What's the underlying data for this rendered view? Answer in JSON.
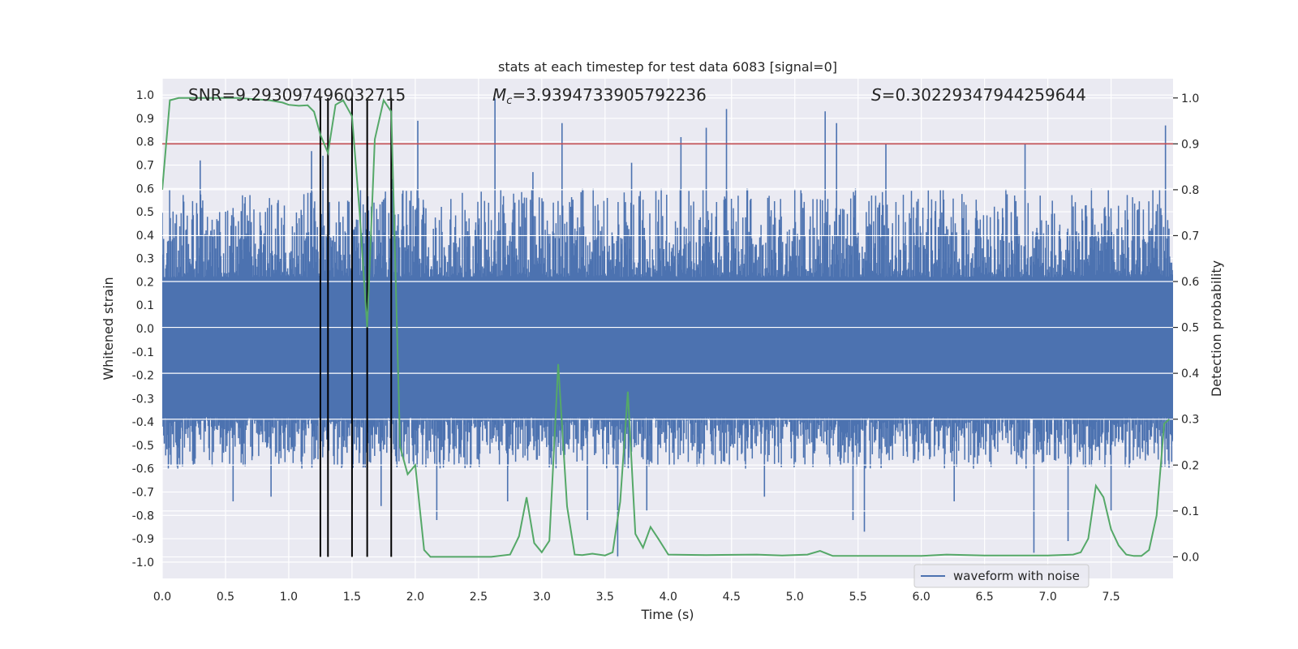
{
  "chart_data": {
    "type": "line",
    "title": "stats at each timestep for test data 6083 [signal=0]",
    "xlabel": "Time (s)",
    "ylabel_left": "Whitened strain",
    "ylabel_right": "Detection probability",
    "xlim": [
      0.0,
      7.99
    ],
    "ylim_left": [
      -1.07,
      1.07
    ],
    "ylim_right": [
      -0.047,
      1.042
    ],
    "x_ticks": [
      0.0,
      0.5,
      1.0,
      1.5,
      2.0,
      2.5,
      3.0,
      3.5,
      4.0,
      4.5,
      5.0,
      5.5,
      6.0,
      6.5,
      7.0,
      7.5
    ],
    "x_tick_labels": [
      "0.0",
      "0.5",
      "1.0",
      "1.5",
      "2.0",
      "2.5",
      "3.0",
      "3.5",
      "4.0",
      "4.5",
      "5.0",
      "5.5",
      "6.0",
      "6.5",
      "7.0",
      "7.5"
    ],
    "y_left_ticks": [
      1.0,
      0.9,
      0.8,
      0.7,
      0.6,
      0.5,
      0.4,
      0.3,
      0.2,
      0.1,
      0.0,
      -0.1,
      -0.2,
      -0.3,
      -0.4,
      -0.5,
      -0.6,
      -0.7,
      -0.8,
      -0.9,
      -1.0
    ],
    "y_left_tick_labels": [
      "1.0",
      "0.9",
      "0.8",
      "0.7",
      "0.6",
      "0.5",
      "0.4",
      "0.3",
      "0.2",
      "0.1",
      "0.0",
      "-0.1",
      "-0.2",
      "-0.3",
      "-0.4",
      "-0.5",
      "-0.6",
      "-0.7",
      "-0.8",
      "-0.9",
      "-1.0"
    ],
    "y_right_ticks": [
      1.0,
      0.9,
      0.8,
      0.7,
      0.6,
      0.5,
      0.4,
      0.3,
      0.2,
      0.1,
      0.0
    ],
    "y_right_tick_labels": [
      "1.0",
      "0.9",
      "0.8",
      "0.7",
      "0.6",
      "0.5",
      "0.4",
      "0.3",
      "0.2",
      "0.1",
      "0.0"
    ],
    "grid": true,
    "legend": {
      "position": "bottom-right",
      "entries": [
        "waveform with noise"
      ]
    },
    "annotations": {
      "snr": "SNR=9.293097496032715",
      "mc_symbol": "M",
      "mc_subscript": "c",
      "mc_value": "=3.9394733905792236",
      "s_symbol": "S",
      "s_value": "=0.30229347944259644"
    },
    "threshold": {
      "axis": "right",
      "value": 0.9,
      "color": "#c44e52"
    },
    "vertical_lines": {
      "x": [
        1.25,
        1.31,
        1.5,
        1.62,
        1.81
      ],
      "ymin_right": 0.0,
      "ymax_right": 1.0,
      "color": "#000000"
    },
    "series": [
      {
        "name": "waveform with noise",
        "axis": "left",
        "color": "#4c72b0",
        "style": "dense noise band",
        "core_band": [
          -0.38,
          0.22
        ],
        "typical_envelope": [
          -0.6,
          0.6
        ],
        "spikes": [
          {
            "x": 0.05,
            "y": -0.58
          },
          {
            "x": 0.16,
            "y": -0.59
          },
          {
            "x": 0.3,
            "y": 0.72
          },
          {
            "x": 0.56,
            "y": -0.74
          },
          {
            "x": 0.86,
            "y": -0.72
          },
          {
            "x": 1.18,
            "y": 0.76
          },
          {
            "x": 1.27,
            "y": 0.74
          },
          {
            "x": 1.5,
            "y": -0.75
          },
          {
            "x": 1.73,
            "y": -0.76
          },
          {
            "x": 1.82,
            "y": 0.64
          },
          {
            "x": 2.02,
            "y": 0.89
          },
          {
            "x": 2.17,
            "y": -0.82
          },
          {
            "x": 2.63,
            "y": 0.99
          },
          {
            "x": 2.73,
            "y": -0.74
          },
          {
            "x": 2.93,
            "y": 0.67
          },
          {
            "x": 3.16,
            "y": 0.88
          },
          {
            "x": 3.36,
            "y": -0.82
          },
          {
            "x": 3.6,
            "y": -0.98
          },
          {
            "x": 3.71,
            "y": 0.71
          },
          {
            "x": 3.83,
            "y": -0.78
          },
          {
            "x": 4.1,
            "y": 0.82
          },
          {
            "x": 4.3,
            "y": 0.86
          },
          {
            "x": 4.46,
            "y": 0.94
          },
          {
            "x": 4.76,
            "y": -0.72
          },
          {
            "x": 5.24,
            "y": 0.93
          },
          {
            "x": 5.33,
            "y": 0.88
          },
          {
            "x": 5.46,
            "y": -0.82
          },
          {
            "x": 5.55,
            "y": -0.87
          },
          {
            "x": 5.72,
            "y": 0.79
          },
          {
            "x": 6.26,
            "y": -0.74
          },
          {
            "x": 6.82,
            "y": 0.79
          },
          {
            "x": 6.89,
            "y": -0.96
          },
          {
            "x": 7.16,
            "y": -0.91
          },
          {
            "x": 7.5,
            "y": -0.78
          },
          {
            "x": 7.93,
            "y": 0.87
          }
        ]
      },
      {
        "name": "",
        "axis": "right",
        "color": "#55a868",
        "x": [
          0.0,
          0.06,
          0.13,
          0.3,
          0.6,
          0.85,
          0.95,
          1.0,
          1.08,
          1.15,
          1.2,
          1.25,
          1.31,
          1.37,
          1.43,
          1.5,
          1.56,
          1.62,
          1.68,
          1.75,
          1.81,
          1.88,
          1.94,
          2.0,
          2.07,
          2.12,
          2.3,
          2.6,
          2.75,
          2.82,
          2.88,
          2.94,
          3.0,
          3.06,
          3.13,
          3.2,
          3.26,
          3.32,
          3.4,
          3.5,
          3.56,
          3.62,
          3.68,
          3.74,
          3.8,
          3.86,
          3.92,
          4.0,
          4.3,
          4.7,
          4.9,
          5.1,
          5.2,
          5.3,
          5.7,
          6.0,
          6.2,
          6.5,
          7.0,
          7.2,
          7.26,
          7.32,
          7.38,
          7.44,
          7.5,
          7.56,
          7.62,
          7.68,
          7.74,
          7.8,
          7.86,
          7.92,
          7.96
        ],
        "y": [
          0.8,
          0.995,
          1.0,
          1.0,
          1.0,
          0.995,
          0.99,
          0.985,
          0.983,
          0.984,
          0.97,
          0.92,
          0.88,
          0.985,
          0.995,
          0.96,
          0.75,
          0.5,
          0.91,
          0.995,
          0.97,
          0.24,
          0.18,
          0.2,
          0.015,
          0.0,
          0.0,
          0.0,
          0.005,
          0.045,
          0.13,
          0.03,
          0.01,
          0.035,
          0.42,
          0.11,
          0.005,
          0.004,
          0.007,
          0.003,
          0.01,
          0.12,
          0.36,
          0.05,
          0.02,
          0.065,
          0.04,
          0.005,
          0.004,
          0.005,
          0.003,
          0.005,
          0.013,
          0.002,
          0.002,
          0.002,
          0.005,
          0.003,
          0.003,
          0.005,
          0.01,
          0.04,
          0.155,
          0.13,
          0.06,
          0.025,
          0.005,
          0.002,
          0.002,
          0.015,
          0.09,
          0.29,
          0.3
        ]
      }
    ]
  }
}
